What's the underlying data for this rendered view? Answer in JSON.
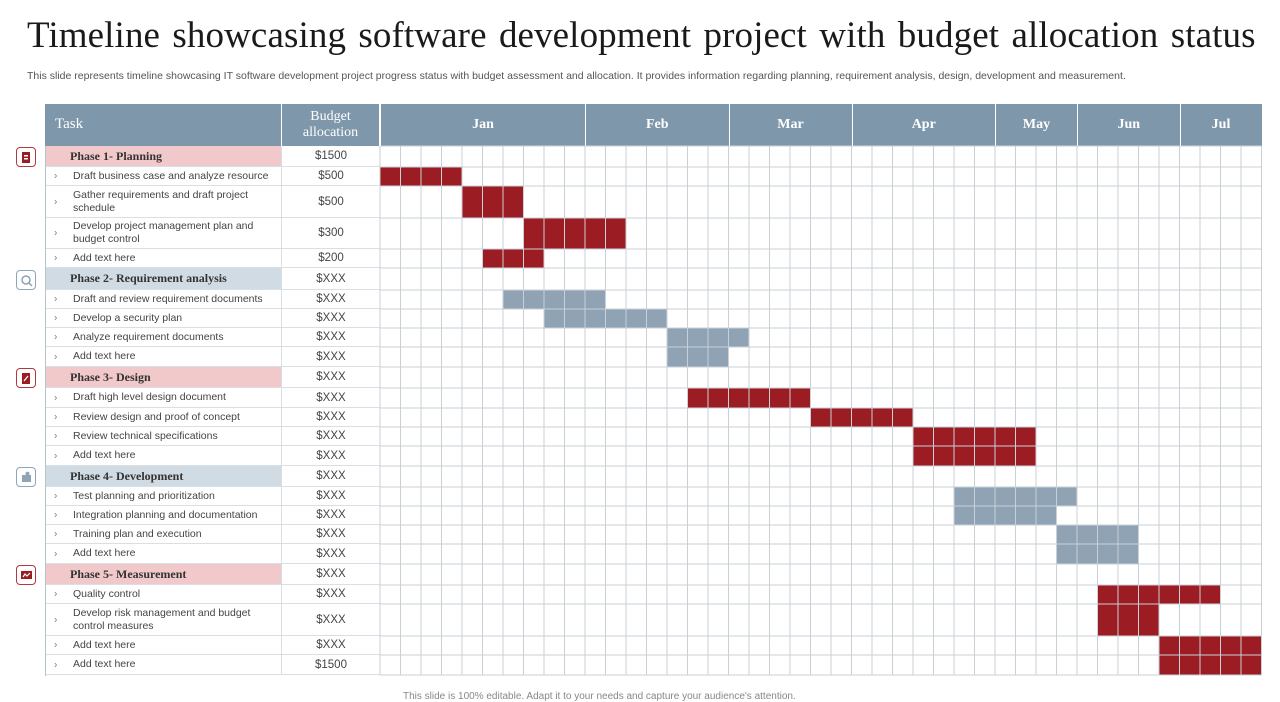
{
  "title": "Timeline showcasing software development project with budget allocation status",
  "subtitle": "This slide represents timeline showcasing IT software development project progress status with budget assessment and allocation. It provides information regarding planning, requirement analysis, design, development and measurement.",
  "footer_note": "This slide is 100% editable. Adapt it to your needs and capture your audience's attention.",
  "colors": {
    "header": "#7e97ab",
    "red_bar": "#9b1c22",
    "blue_bar": "#8fa3b4",
    "phase_red_bg": "#f2c9cb",
    "phase_blue_bg": "#d0dbe3"
  },
  "chart_data": {
    "type": "table",
    "columns": {
      "task": "Task",
      "budget": "Budget allocation"
    },
    "months": [
      "Jan",
      "Feb",
      "Mar",
      "Apr",
      "May",
      "Jun",
      "Jul"
    ],
    "rows": [
      {
        "kind": "phase",
        "label": "Phase 1- Planning",
        "budget": "$1500",
        "color": "red",
        "icon": "planning-icon"
      },
      {
        "kind": "task",
        "label": "Draft business case and analyze resource",
        "budget": "$500",
        "bar": [
          0,
          4
        ],
        "color": "red"
      },
      {
        "kind": "task",
        "label": "Gather requirements and draft project schedule",
        "budget": "$500",
        "bar": [
          4,
          3
        ],
        "color": "red"
      },
      {
        "kind": "task",
        "label": "Develop project management plan and budget control",
        "budget": "$300",
        "bar": [
          7,
          5
        ],
        "color": "red"
      },
      {
        "kind": "task",
        "label": "Add text here",
        "budget": "$200",
        "bar": [
          5,
          3
        ],
        "color": "red"
      },
      {
        "kind": "phase",
        "label": "Phase 2- Requirement analysis",
        "budget": "$XXX",
        "color": "blue",
        "icon": "magnifier-icon"
      },
      {
        "kind": "task",
        "label": "Draft and review requirement documents",
        "budget": "$XXX",
        "bar": [
          6,
          5
        ],
        "color": "blue"
      },
      {
        "kind": "task",
        "label": "Develop a security plan",
        "budget": "$XXX",
        "bar": [
          8,
          6
        ],
        "color": "blue"
      },
      {
        "kind": "task",
        "label": "Analyze requirement documents",
        "budget": "$XXX",
        "bar": [
          14,
          4
        ],
        "color": "blue"
      },
      {
        "kind": "task",
        "label": "Add text here",
        "budget": "$XXX",
        "bar": [
          14,
          3
        ],
        "color": "blue"
      },
      {
        "kind": "phase",
        "label": "Phase 3- Design",
        "budget": "$XXX",
        "color": "red",
        "icon": "design-icon"
      },
      {
        "kind": "task",
        "label": "Draft high level design document",
        "budget": "$XXX",
        "bar": [
          15,
          6
        ],
        "color": "red"
      },
      {
        "kind": "task",
        "label": "Review design and proof of concept",
        "budget": "$XXX",
        "bar": [
          21,
          5
        ],
        "color": "red"
      },
      {
        "kind": "task",
        "label": "Review technical specifications",
        "budget": "$XXX",
        "bar": [
          26,
          6
        ],
        "color": "red"
      },
      {
        "kind": "task",
        "label": "Add text here",
        "budget": "$XXX",
        "bar": [
          26,
          6
        ],
        "color": "red"
      },
      {
        "kind": "phase",
        "label": "Phase 4- Development",
        "budget": "$XXX",
        "color": "blue",
        "icon": "puzzle-icon"
      },
      {
        "kind": "task",
        "label": "Test planning and prioritization",
        "budget": "$XXX",
        "bar": [
          28,
          6
        ],
        "color": "blue"
      },
      {
        "kind": "task",
        "label": "Integration planning and documentation",
        "budget": "$XXX",
        "bar": [
          28,
          5
        ],
        "color": "blue"
      },
      {
        "kind": "task",
        "label": "Training plan and execution",
        "budget": "$XXX",
        "bar": [
          33,
          4
        ],
        "color": "blue"
      },
      {
        "kind": "task",
        "label": "Add text here",
        "budget": "$XXX",
        "bar": [
          33,
          4
        ],
        "color": "blue"
      },
      {
        "kind": "phase",
        "label": "Phase 5- Measurement",
        "budget": "$XXX",
        "color": "red",
        "icon": "presentation-icon"
      },
      {
        "kind": "task",
        "label": "Quality control",
        "budget": "$XXX",
        "bar": [
          35,
          6
        ],
        "color": "red"
      },
      {
        "kind": "task",
        "label": "Develop risk management and budget control measures",
        "budget": "$XXX",
        "bar": [
          35,
          3
        ],
        "color": "red"
      },
      {
        "kind": "task",
        "label": "Add text here",
        "budget": "$XXX",
        "bar": [
          38,
          5
        ],
        "color": "red"
      },
      {
        "kind": "task",
        "label": "Add text here",
        "budget": "$1500",
        "bar": [
          38,
          5
        ],
        "color": "red"
      }
    ]
  }
}
